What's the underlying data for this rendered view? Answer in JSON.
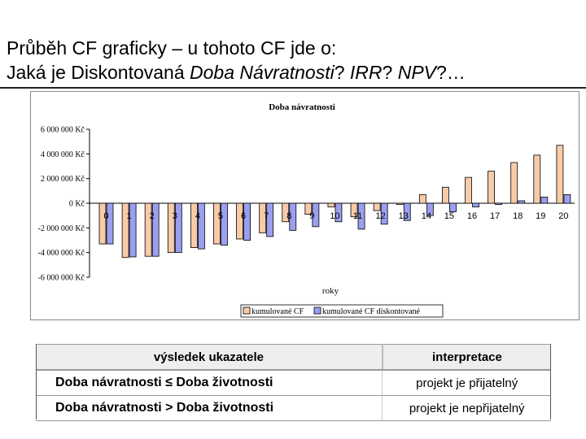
{
  "heading": {
    "line1": "Průběh CF graficky – u tohoto CF jde o:",
    "line2_plain": "Jaká je Diskontovaná ",
    "line2_italic": "Doba Návratnosti",
    "line2_rest1": "? ",
    "line2_irr": "IRR",
    "line2_rest2": "? ",
    "line2_npv": "NPV",
    "line2_rest3": "?…"
  },
  "chart_data": {
    "type": "bar",
    "title": "Doba návratnosti",
    "xlabel": "roky",
    "ylabel": "",
    "ylim": [
      -6000000,
      6000000
    ],
    "yticks": [
      6000000,
      4000000,
      2000000,
      0,
      -2000000,
      -4000000,
      -6000000
    ],
    "ytick_labels": [
      "6 000 000 Kč",
      "4 000 000 Kč",
      "2 000 000 Kč",
      "0 Kč",
      "-2 000 000 Kč",
      "-4 000 000 Kč",
      "-6 000 000 Kč"
    ],
    "categories": [
      "0",
      "1",
      "2",
      "3",
      "4",
      "5",
      "6",
      "7",
      "8",
      "9",
      "10",
      "11",
      "12",
      "13",
      "14",
      "15",
      "16",
      "17",
      "18",
      "19",
      "20"
    ],
    "series": [
      {
        "name": "kumulované CF",
        "color": "#f8cba8",
        "values": [
          -3300000,
          -4400000,
          -4300000,
          -4000000,
          -3600000,
          -3300000,
          -2900000,
          -2400000,
          -1500000,
          -900000,
          -300000,
          -1100000,
          -600000,
          -100000,
          700000,
          1300000,
          2100000,
          2600000,
          3300000,
          3900000,
          4700000
        ]
      },
      {
        "name": "kumulované CF diskontované",
        "color": "#9a9ff0",
        "values": [
          -3300000,
          -4350000,
          -4300000,
          -4000000,
          -3700000,
          -3400000,
          -3000000,
          -2700000,
          -2200000,
          -1900000,
          -1500000,
          -2100000,
          -1700000,
          -1400000,
          -1000000,
          -700000,
          -300000,
          -100000,
          200000,
          500000,
          700000
        ]
      }
    ],
    "legend": "bottom"
  },
  "table": {
    "header": [
      "výsledek ukazatele",
      "interpretace"
    ],
    "rows": [
      {
        "condition": "Doba návratnosti ≤ Doba životnosti",
        "interpretation": "projekt je přijatelný"
      },
      {
        "condition": "Doba návratnosti > Doba životnosti",
        "interpretation": "projekt je nepřijatelný"
      }
    ]
  }
}
